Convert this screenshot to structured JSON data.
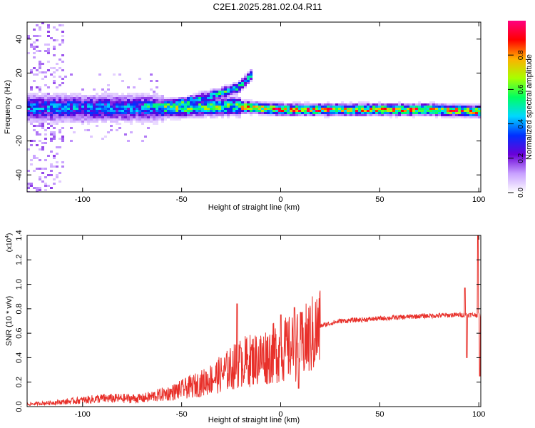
{
  "title": "C2E1.2025.281.02.04.R11",
  "chart_data": [
    {
      "type": "heatmap",
      "xlabel": "Height of straight line (km)",
      "ylabel": "Frequency (Hz)",
      "xlim": [
        -128,
        101
      ],
      "ylim": [
        -50,
        50
      ],
      "xticks": [
        -100,
        -50,
        0,
        50,
        100
      ],
      "yticks": [
        -40,
        -20,
        0,
        20,
        40
      ],
      "colorbar": {
        "label": "Normalized spectral amplitude",
        "range": [
          0.0,
          1.0
        ],
        "ticks": [
          "0.0",
          "0.2",
          "0.4",
          "0.6",
          "0.8"
        ],
        "colors": [
          "#ffffff",
          "#c8a0ff",
          "#6a00d8",
          "#0030ff",
          "#00d8ff",
          "#00ff60",
          "#a8ff00",
          "#ffb000",
          "#ff0000",
          "#ff0080"
        ]
      },
      "ridge": [
        {
          "x": -128,
          "y": 0
        },
        {
          "x": -100,
          "y": 0
        },
        {
          "x": -75,
          "y": 0
        },
        {
          "x": -50,
          "y": 0
        },
        {
          "x": -25,
          "y": 1
        },
        {
          "x": 0,
          "y": -1
        },
        {
          "x": 25,
          "y": -1
        },
        {
          "x": 50,
          "y": -1
        },
        {
          "x": 75,
          "y": -1
        },
        {
          "x": 100,
          "y": -2
        }
      ],
      "branch": [
        {
          "x": -65,
          "y": 1
        },
        {
          "x": -50,
          "y": 3
        },
        {
          "x": -40,
          "y": 6
        },
        {
          "x": -30,
          "y": 9
        },
        {
          "x": -22,
          "y": 12
        },
        {
          "x": -15,
          "y": 20
        }
      ]
    },
    {
      "type": "line",
      "xlabel": "Height of straight line (km)",
      "ylabel": "SNR (10 * v/v)",
      "yscale_label": "(x10",
      "yscale_exp": "4",
      "yscale_close": ")",
      "xlim": [
        -128,
        101
      ],
      "ylim": [
        0.0,
        1.4
      ],
      "xticks": [
        -100,
        -50,
        0,
        50,
        100
      ],
      "yticks": [
        "0.0",
        "0.2",
        "0.4",
        "0.6",
        "0.8",
        "1.0",
        "1.2",
        "1.4"
      ],
      "color": "#e8302a",
      "trend": [
        {
          "x": -128,
          "y": 0.02
        },
        {
          "x": -110,
          "y": 0.04
        },
        {
          "x": -90,
          "y": 0.07
        },
        {
          "x": -70,
          "y": 0.07
        },
        {
          "x": -55,
          "y": 0.12
        },
        {
          "x": -40,
          "y": 0.2
        },
        {
          "x": -30,
          "y": 0.28
        },
        {
          "x": -20,
          "y": 0.38
        },
        {
          "x": -10,
          "y": 0.42
        },
        {
          "x": 0,
          "y": 0.48
        },
        {
          "x": 10,
          "y": 0.52
        },
        {
          "x": 15,
          "y": 0.6
        },
        {
          "x": 20,
          "y": 0.66
        },
        {
          "x": 30,
          "y": 0.7
        },
        {
          "x": 50,
          "y": 0.72
        },
        {
          "x": 70,
          "y": 0.74
        },
        {
          "x": 90,
          "y": 0.75
        },
        {
          "x": 100,
          "y": 0.75
        }
      ],
      "spikes": [
        {
          "x": -22,
          "y": 0.84
        },
        {
          "x": -20,
          "y": 0.48
        },
        {
          "x": 0,
          "y": 0.75
        },
        {
          "x": 7,
          "y": 0.81
        },
        {
          "x": 9,
          "y": 0.15
        },
        {
          "x": 93,
          "y": 0.97
        },
        {
          "x": 94,
          "y": 0.4
        },
        {
          "x": 99.5,
          "y": 1.42
        },
        {
          "x": 100.5,
          "y": 0.25
        }
      ]
    }
  ]
}
